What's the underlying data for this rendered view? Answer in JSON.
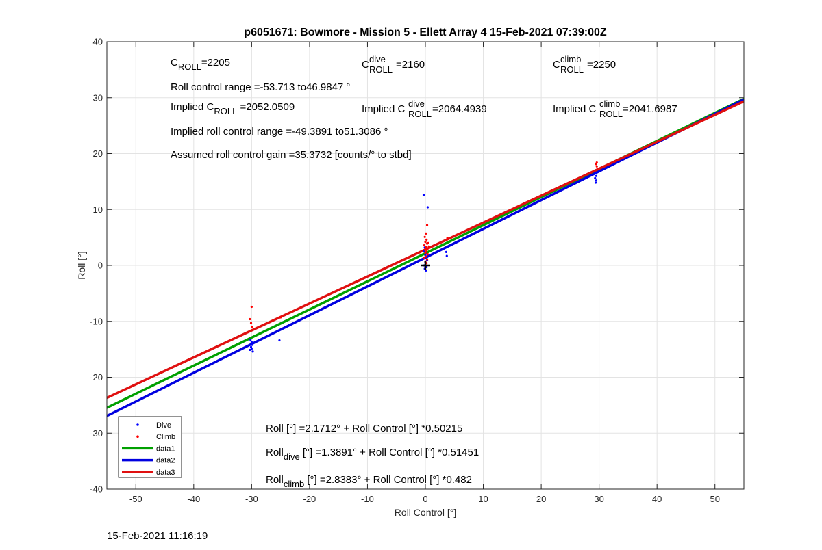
{
  "chart_data": {
    "type": "scatter",
    "title": "p6051671: Bowmore - Mission 5 - Ellett Array 4 15-Feb-2021 07:39:00Z",
    "xlabel": "Roll Control [°]",
    "ylabel": "Roll [°]",
    "xlim": [
      -55,
      55
    ],
    "ylim": [
      -40,
      40
    ],
    "xticks": [
      -50,
      -40,
      -30,
      -20,
      -10,
      0,
      10,
      20,
      30,
      40,
      50
    ],
    "yticks": [
      -40,
      -30,
      -20,
      -10,
      0,
      10,
      20,
      30,
      40
    ],
    "grid": true,
    "legend_position": "bottom-left",
    "series": [
      {
        "name": "Dive",
        "kind": "points",
        "color": "#0000ff",
        "points": [
          [
            -30.2,
            -13.3
          ],
          [
            -30.0,
            -13.7
          ],
          [
            -29.9,
            -14.2
          ],
          [
            -30.1,
            -14.6
          ],
          [
            -30.3,
            -15.1
          ],
          [
            -29.8,
            -15.4
          ],
          [
            -30.0,
            -14.9
          ],
          [
            -25.2,
            -13.4
          ],
          [
            -0.3,
            12.6
          ],
          [
            0.4,
            10.4
          ],
          [
            -0.1,
            3.2
          ],
          [
            0.1,
            2.1
          ],
          [
            0.3,
            1.5
          ],
          [
            0.0,
            0.6
          ],
          [
            -0.2,
            0.0
          ],
          [
            0.2,
            -0.3
          ],
          [
            -0.1,
            -0.6
          ],
          [
            0.1,
            -0.9
          ],
          [
            0.3,
            0.9
          ],
          [
            0.0,
            1.8
          ],
          [
            -0.2,
            2.6
          ],
          [
            3.6,
            2.4
          ],
          [
            3.7,
            1.7
          ],
          [
            29.4,
            16.6
          ],
          [
            29.5,
            16.0
          ],
          [
            29.3,
            15.6
          ],
          [
            29.5,
            15.2
          ],
          [
            29.4,
            14.8
          ]
        ]
      },
      {
        "name": "Climb",
        "kind": "points",
        "color": "#ff0000",
        "points": [
          [
            -30.0,
            -7.4
          ],
          [
            -30.3,
            -9.6
          ],
          [
            -30.1,
            -10.3
          ],
          [
            -29.9,
            -11.0
          ],
          [
            -25.0,
            -9.3
          ],
          [
            0.3,
            7.2
          ],
          [
            0.1,
            5.7
          ],
          [
            -0.1,
            5.1
          ],
          [
            0.2,
            4.6
          ],
          [
            0.0,
            4.2
          ],
          [
            0.3,
            3.9
          ],
          [
            -0.2,
            3.6
          ],
          [
            0.1,
            3.3
          ],
          [
            0.3,
            3.0
          ],
          [
            -0.1,
            2.8
          ],
          [
            0.2,
            2.5
          ],
          [
            0.0,
            2.2
          ],
          [
            0.4,
            2.0
          ],
          [
            0.1,
            1.6
          ],
          [
            -0.2,
            1.3
          ],
          [
            0.3,
            1.1
          ],
          [
            0.0,
            0.7
          ],
          [
            0.2,
            0.4
          ],
          [
            0.6,
            3.4
          ],
          [
            0.5,
            4.0
          ],
          [
            3.8,
            4.9
          ],
          [
            29.6,
            18.4
          ],
          [
            29.5,
            18.1
          ],
          [
            29.6,
            17.7
          ]
        ]
      },
      {
        "name": "data1",
        "kind": "line",
        "color": "#00a000",
        "x": [
          -55,
          55
        ],
        "y": [
          -25.447,
          29.79
        ]
      },
      {
        "name": "data2",
        "kind": "line",
        "color": "#0000e0",
        "x": [
          -55,
          55
        ],
        "y": [
          -26.909,
          29.687
        ]
      },
      {
        "name": "data3",
        "kind": "line",
        "color": "#e01010",
        "x": [
          -55,
          55
        ],
        "y": [
          -23.672,
          29.348
        ]
      }
    ],
    "marker": {
      "x": 0,
      "y": 0,
      "symbol": "+"
    }
  },
  "annotations": {
    "c_roll": {
      "base": "C",
      "sub": "ROLL",
      "value": "=2205"
    },
    "c_roll_dive": {
      "base": "C",
      "sup": "dive",
      "sub": "ROLL",
      "value": "=2160"
    },
    "c_roll_climb": {
      "base": "C",
      "sup": "climb",
      "sub": "ROLL",
      "value": "=2250"
    },
    "roll_control_range": "Roll control range =-53.713 to46.9847 °",
    "implied_c_roll": {
      "prefix": "Implied C",
      "sub": "ROLL",
      "value": " =2052.0509"
    },
    "implied_c_roll_dive": {
      "prefix": "Implied C",
      "sup": "dive",
      "sub": "ROLL",
      "value": " =2064.4939"
    },
    "implied_c_roll_climb": {
      "prefix": "Implied C",
      "sup": "climb",
      "sub": "ROLL",
      "value": " =2041.6987"
    },
    "implied_range": "Implied roll control range =-49.3891 to51.3086 °",
    "gain": "Assumed roll control gain =35.3732 [counts/° to stbd]",
    "fit_all": "Roll [°] =2.1712° + Roll Control [°] *0.50215",
    "fit_dive": {
      "base": "Roll",
      "sub": "dive",
      "rest": " [°] =1.3891° + Roll Control [°] *0.51451"
    },
    "fit_climb": {
      "base": "Roll",
      "sub": "climb",
      "rest": " [°] =2.8383° + Roll Control [°] *0.482"
    }
  },
  "timestamp": "15-Feb-2021 11:16:19"
}
